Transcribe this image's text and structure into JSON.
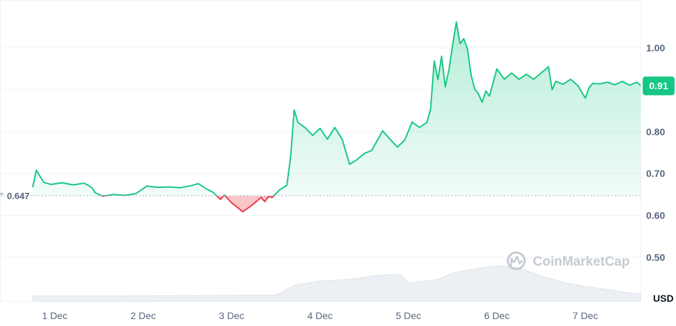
{
  "chart_data": {
    "type": "area",
    "unit": "USD",
    "y_ticks": [
      0.5,
      0.6,
      0.7,
      0.8,
      0.9,
      1.0
    ],
    "y_tick_labels": [
      "0.50",
      "0.60",
      "0.70",
      "0.80",
      "1.00"
    ],
    "ylim": [
      0.44,
      1.08
    ],
    "x_tick_labels": [
      "1 Dec",
      "2 Dec",
      "3 Dec",
      "4 Dec",
      "5 Dec",
      "6 Dec",
      "7 Dec"
    ],
    "x_start": "2024-11-30T18:00",
    "x_end": "2024-12-07T15:00",
    "reference_value": 0.647,
    "reference_label": "0.647",
    "current_value": 0.91,
    "current_label": "0.91",
    "colors": {
      "up": "#16c784",
      "down": "#ea3943",
      "badge": "#16c784"
    },
    "grid": true,
    "series": [
      {
        "values": [
          [
            "2024-11-30T18:00",
            0.667
          ],
          [
            "2024-11-30T19:00",
            0.708
          ],
          [
            "2024-11-30T21:00",
            0.679
          ],
          [
            "2024-11-30T23:00",
            0.674
          ],
          [
            "2024-12-01T02:00",
            0.678
          ],
          [
            "2024-12-01T05:00",
            0.673
          ],
          [
            "2024-12-01T08:00",
            0.677
          ],
          [
            "2024-12-01T10:00",
            0.667
          ],
          [
            "2024-12-01T11:00",
            0.654
          ],
          [
            "2024-12-01T13:00",
            0.646
          ],
          [
            "2024-12-01T16:00",
            0.65
          ],
          [
            "2024-12-01T19:00",
            0.648
          ],
          [
            "2024-12-01T22:00",
            0.652
          ],
          [
            "2024-12-02T01:00",
            0.67
          ],
          [
            "2024-12-02T04:00",
            0.667
          ],
          [
            "2024-12-02T07:00",
            0.668
          ],
          [
            "2024-12-02T10:00",
            0.666
          ],
          [
            "2024-12-02T13:00",
            0.671
          ],
          [
            "2024-12-02T15:00",
            0.676
          ],
          [
            "2024-12-02T17:00",
            0.664
          ],
          [
            "2024-12-02T19:00",
            0.655
          ],
          [
            "2024-12-02T21:00",
            0.638
          ],
          [
            "2024-12-02T22:00",
            0.649
          ],
          [
            "2024-12-03T00:00",
            0.63
          ],
          [
            "2024-12-03T02:00",
            0.616
          ],
          [
            "2024-12-03T03:00",
            0.609
          ],
          [
            "2024-12-03T05:00",
            0.621
          ],
          [
            "2024-12-03T06:00",
            0.628
          ],
          [
            "2024-12-03T08:00",
            0.643
          ],
          [
            "2024-12-03T09:00",
            0.633
          ],
          [
            "2024-12-03T10:00",
            0.645
          ],
          [
            "2024-12-03T11:00",
            0.643
          ],
          [
            "2024-12-03T13:00",
            0.661
          ],
          [
            "2024-12-03T15:00",
            0.672
          ],
          [
            "2024-12-03T16:00",
            0.738
          ],
          [
            "2024-12-03T17:00",
            0.852
          ],
          [
            "2024-12-03T18:00",
            0.822
          ],
          [
            "2024-12-03T20:00",
            0.809
          ],
          [
            "2024-12-03T22:00",
            0.791
          ],
          [
            "2024-12-04T00:00",
            0.808
          ],
          [
            "2024-12-04T02:00",
            0.782
          ],
          [
            "2024-12-04T04:00",
            0.81
          ],
          [
            "2024-12-04T06:00",
            0.782
          ],
          [
            "2024-12-04T08:00",
            0.722
          ],
          [
            "2024-12-04T10:00",
            0.733
          ],
          [
            "2024-12-04T12:00",
            0.748
          ],
          [
            "2024-12-04T14:00",
            0.755
          ],
          [
            "2024-12-04T17:00",
            0.802
          ],
          [
            "2024-12-04T19:00",
            0.782
          ],
          [
            "2024-12-04T21:00",
            0.763
          ],
          [
            "2024-12-04T23:00",
            0.78
          ],
          [
            "2024-12-05T01:00",
            0.823
          ],
          [
            "2024-12-05T03:00",
            0.81
          ],
          [
            "2024-12-05T05:00",
            0.822
          ],
          [
            "2024-12-05T06:00",
            0.853
          ],
          [
            "2024-12-05T07:00",
            0.969
          ],
          [
            "2024-12-05T08:00",
            0.924
          ],
          [
            "2024-12-05T09:00",
            0.98
          ],
          [
            "2024-12-05T10:00",
            0.907
          ],
          [
            "2024-12-05T11:00",
            0.948
          ],
          [
            "2024-12-05T12:00",
            1.007
          ],
          [
            "2024-12-05T13:00",
            1.062
          ],
          [
            "2024-12-05T14:00",
            1.01
          ],
          [
            "2024-12-05T15:00",
            1.022
          ],
          [
            "2024-12-05T16:00",
            0.998
          ],
          [
            "2024-12-05T17:00",
            0.935
          ],
          [
            "2024-12-05T18:00",
            0.901
          ],
          [
            "2024-12-05T19:00",
            0.89
          ],
          [
            "2024-12-05T20:00",
            0.87
          ],
          [
            "2024-12-05T21:00",
            0.897
          ],
          [
            "2024-12-05T22:00",
            0.885
          ],
          [
            "2024-12-06T00:00",
            0.95
          ],
          [
            "2024-12-06T02:00",
            0.925
          ],
          [
            "2024-12-06T04:00",
            0.94
          ],
          [
            "2024-12-06T06:00",
            0.925
          ],
          [
            "2024-12-06T08:00",
            0.937
          ],
          [
            "2024-12-06T10:00",
            0.925
          ],
          [
            "2024-12-06T12:00",
            0.94
          ],
          [
            "2024-12-06T14:00",
            0.955
          ],
          [
            "2024-12-06T15:00",
            0.9
          ],
          [
            "2024-12-06T16:00",
            0.92
          ],
          [
            "2024-12-06T18:00",
            0.913
          ],
          [
            "2024-12-06T20:00",
            0.925
          ],
          [
            "2024-12-06T22:00",
            0.91
          ],
          [
            "2024-12-07T00:00",
            0.88
          ],
          [
            "2024-12-07T01:00",
            0.905
          ],
          [
            "2024-12-07T02:00",
            0.915
          ],
          [
            "2024-12-07T04:00",
            0.914
          ],
          [
            "2024-12-07T06:00",
            0.918
          ],
          [
            "2024-12-07T08:00",
            0.912
          ],
          [
            "2024-12-07T10:00",
            0.92
          ],
          [
            "2024-12-07T12:00",
            0.911
          ],
          [
            "2024-12-07T14:00",
            0.918
          ],
          [
            "2024-12-07T15:00",
            0.91
          ]
        ]
      }
    ],
    "volume": {
      "relative": [
        [
          "2024-11-30T18:00",
          0.12
        ],
        [
          "2024-12-01T12:00",
          0.12
        ],
        [
          "2024-12-02T12:00",
          0.13
        ],
        [
          "2024-12-03T12:00",
          0.14
        ],
        [
          "2024-12-03T17:00",
          0.38
        ],
        [
          "2024-12-04T00:00",
          0.48
        ],
        [
          "2024-12-04T08:00",
          0.52
        ],
        [
          "2024-12-04T16:00",
          0.62
        ],
        [
          "2024-12-04T22:00",
          0.64
        ],
        [
          "2024-12-05T00:00",
          0.43
        ],
        [
          "2024-12-05T08:00",
          0.52
        ],
        [
          "2024-12-05T12:00",
          0.68
        ],
        [
          "2024-12-05T20:00",
          0.8
        ],
        [
          "2024-12-06T00:00",
          0.85
        ],
        [
          "2024-12-06T06:00",
          0.8
        ],
        [
          "2024-12-06T12:00",
          0.6
        ],
        [
          "2024-12-06T18:00",
          0.45
        ],
        [
          "2024-12-07T00:00",
          0.35
        ],
        [
          "2024-12-07T08:00",
          0.25
        ],
        [
          "2024-12-07T15:00",
          0.16
        ]
      ]
    }
  },
  "watermark": {
    "text": "CoinMarketCap",
    "icon": "coinmarketcap-logo-icon"
  }
}
